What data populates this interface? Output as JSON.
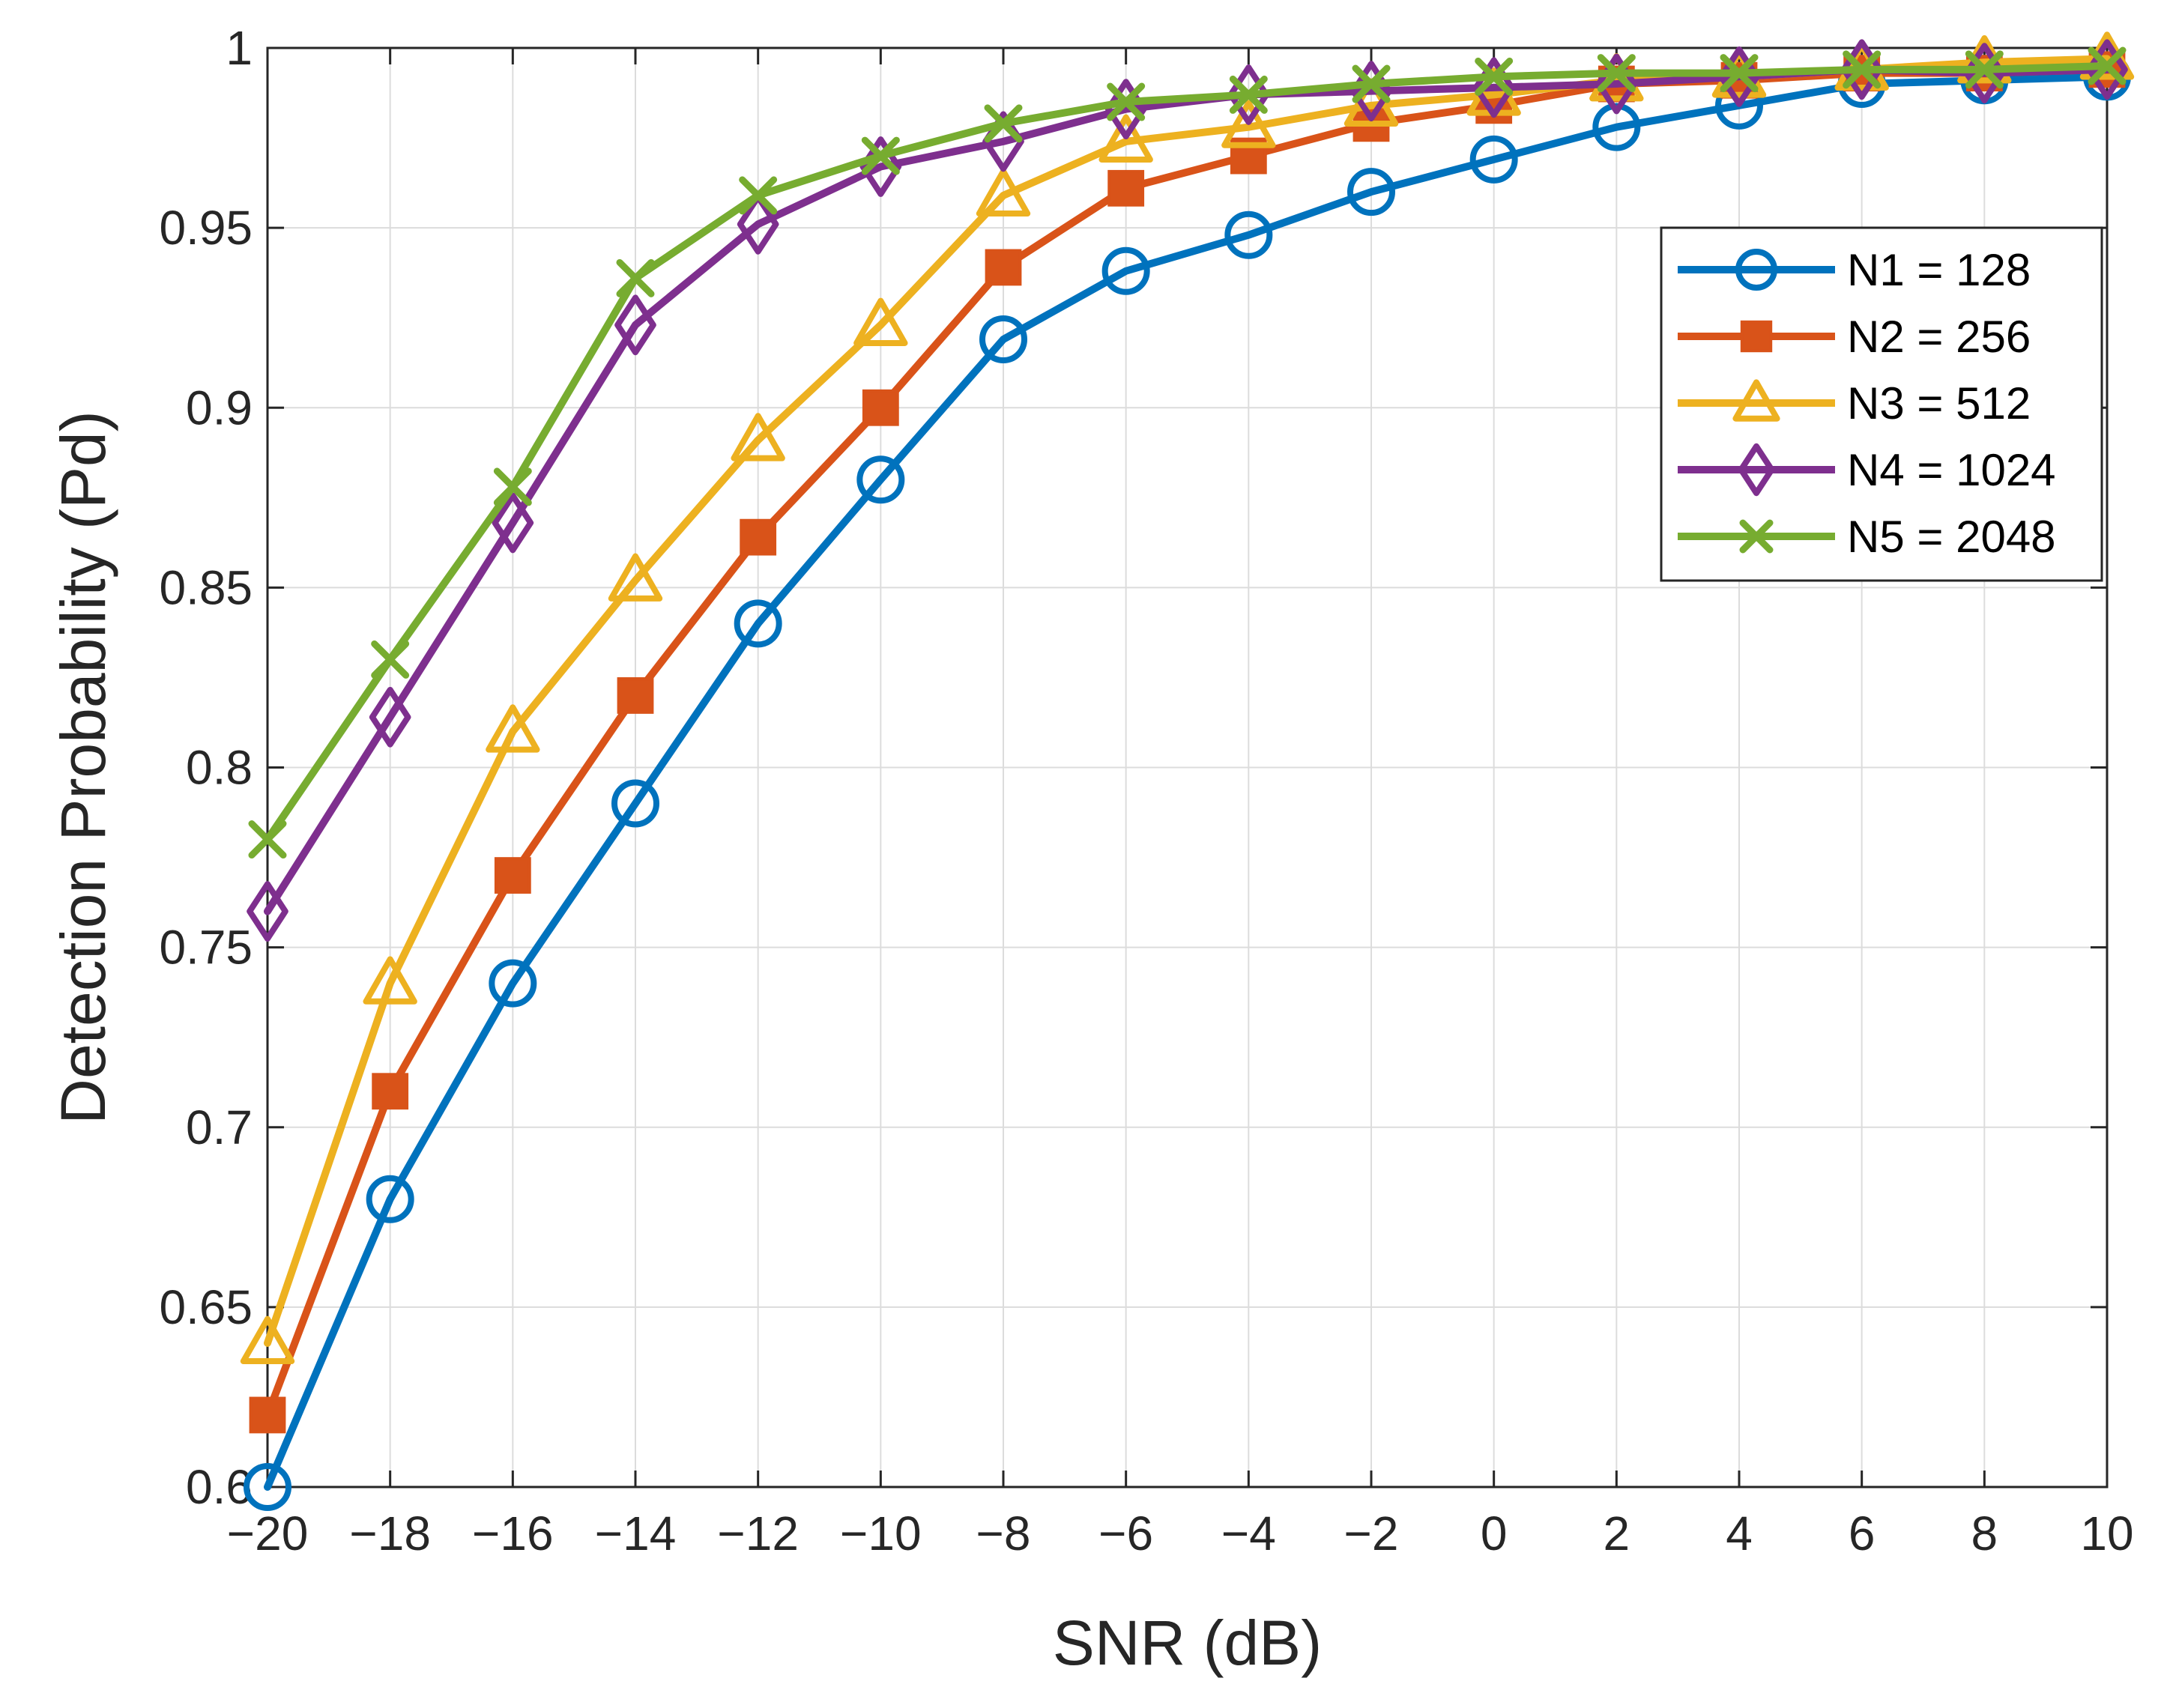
{
  "chart_data": {
    "type": "line",
    "title": "",
    "xlabel": "SNR (dB)",
    "ylabel": "Detection Probability (Pd)",
    "xlim": [
      -20,
      10
    ],
    "ylim": [
      0.6,
      1.0
    ],
    "grid": true,
    "legend_position": "top-right",
    "x": [
      -20,
      -18,
      -16,
      -14,
      -12,
      -10,
      -8,
      -6,
      -4,
      -2,
      0,
      2,
      4,
      6,
      8,
      10
    ],
    "x_ticks": [
      -20,
      -18,
      -16,
      -14,
      -12,
      -10,
      -8,
      -6,
      -4,
      -2,
      0,
      2,
      4,
      6,
      8,
      10
    ],
    "x_tick_labels": [
      "−20",
      "−18",
      "−16",
      "−14",
      "−12",
      "−10",
      "−8",
      "−6",
      "−4",
      "−2",
      "0",
      "2",
      "4",
      "6",
      "8",
      "10"
    ],
    "y_ticks": [
      0.6,
      0.65,
      0.7,
      0.75,
      0.8,
      0.85,
      0.9,
      0.95,
      1.0
    ],
    "y_tick_labels": [
      "0.6",
      "0.65",
      "0.7",
      "0.75",
      "0.8",
      "0.85",
      "0.9",
      "0.95",
      "1"
    ],
    "series": [
      {
        "name": "N1 = 128",
        "color": "#0072BD",
        "marker": "circle",
        "values": [
          0.6,
          0.68,
          0.74,
          0.79,
          0.84,
          0.88,
          0.919,
          0.938,
          0.948,
          0.96,
          0.969,
          0.978,
          0.984,
          0.99,
          0.991,
          0.992
        ]
      },
      {
        "name": "N2 = 256",
        "color": "#D95319",
        "marker": "square",
        "values": [
          0.62,
          0.71,
          0.77,
          0.82,
          0.864,
          0.9,
          0.939,
          0.961,
          0.97,
          0.979,
          0.984,
          0.99,
          0.991,
          0.993,
          0.993,
          0.994
        ]
      },
      {
        "name": "N3 = 512",
        "color": "#EDB120",
        "marker": "triangle",
        "values": [
          0.64,
          0.74,
          0.81,
          0.852,
          0.891,
          0.923,
          0.959,
          0.974,
          0.978,
          0.984,
          0.987,
          0.991,
          0.992,
          0.994,
          0.996,
          0.997
        ]
      },
      {
        "name": "N4 = 1024",
        "color": "#7E2F8E",
        "marker": "diamond",
        "values": [
          0.76,
          0.814,
          0.868,
          0.923,
          0.951,
          0.967,
          0.974,
          0.983,
          0.987,
          0.988,
          0.989,
          0.99,
          0.992,
          0.994,
          0.993,
          0.994
        ]
      },
      {
        "name": "N5 = 2048",
        "color": "#77AC30",
        "marker": "x",
        "values": [
          0.78,
          0.83,
          0.878,
          0.936,
          0.959,
          0.97,
          0.979,
          0.985,
          0.987,
          0.99,
          0.992,
          0.993,
          0.993,
          0.994,
          0.994,
          0.995
        ]
      }
    ]
  }
}
